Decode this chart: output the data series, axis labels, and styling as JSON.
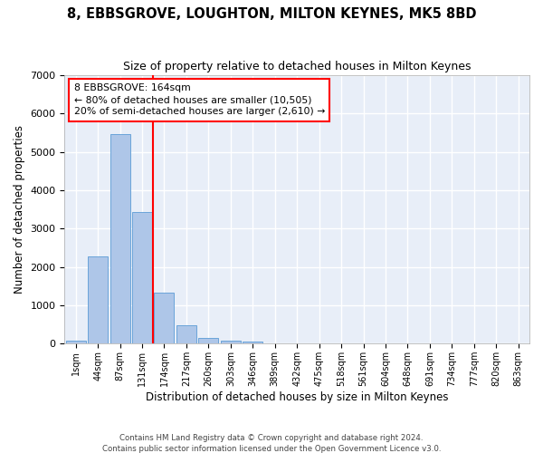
{
  "title": "8, EBBSGROVE, LOUGHTON, MILTON KEYNES, MK5 8BD",
  "subtitle": "Size of property relative to detached houses in Milton Keynes",
  "xlabel": "Distribution of detached houses by size in Milton Keynes",
  "ylabel": "Number of detached properties",
  "categories": [
    "1sqm",
    "44sqm",
    "87sqm",
    "131sqm",
    "174sqm",
    "217sqm",
    "260sqm",
    "303sqm",
    "346sqm",
    "389sqm",
    "432sqm",
    "475sqm",
    "518sqm",
    "561sqm",
    "604sqm",
    "648sqm",
    "691sqm",
    "734sqm",
    "777sqm",
    "820sqm",
    "863sqm"
  ],
  "bar_heights": [
    80,
    2280,
    5470,
    3440,
    1320,
    470,
    160,
    80,
    50,
    0,
    0,
    0,
    0,
    0,
    0,
    0,
    0,
    0,
    0,
    0,
    0
  ],
  "bar_color": "#aec6e8",
  "bar_edge_color": "#5b9bd5",
  "red_line_label": "8 EBBSGROVE: 164sqm",
  "annotation_line1": "← 80% of detached houses are smaller (10,505)",
  "annotation_line2": "20% of semi-detached houses are larger (2,610) →",
  "ylim": [
    0,
    7000
  ],
  "yticks": [
    0,
    1000,
    2000,
    3000,
    4000,
    5000,
    6000,
    7000
  ],
  "background_color": "#e8eef8",
  "grid_color": "#ffffff",
  "fig_background": "#ffffff",
  "footer_line1": "Contains HM Land Registry data © Crown copyright and database right 2024.",
  "footer_line2": "Contains public sector information licensed under the Open Government Licence v3.0."
}
